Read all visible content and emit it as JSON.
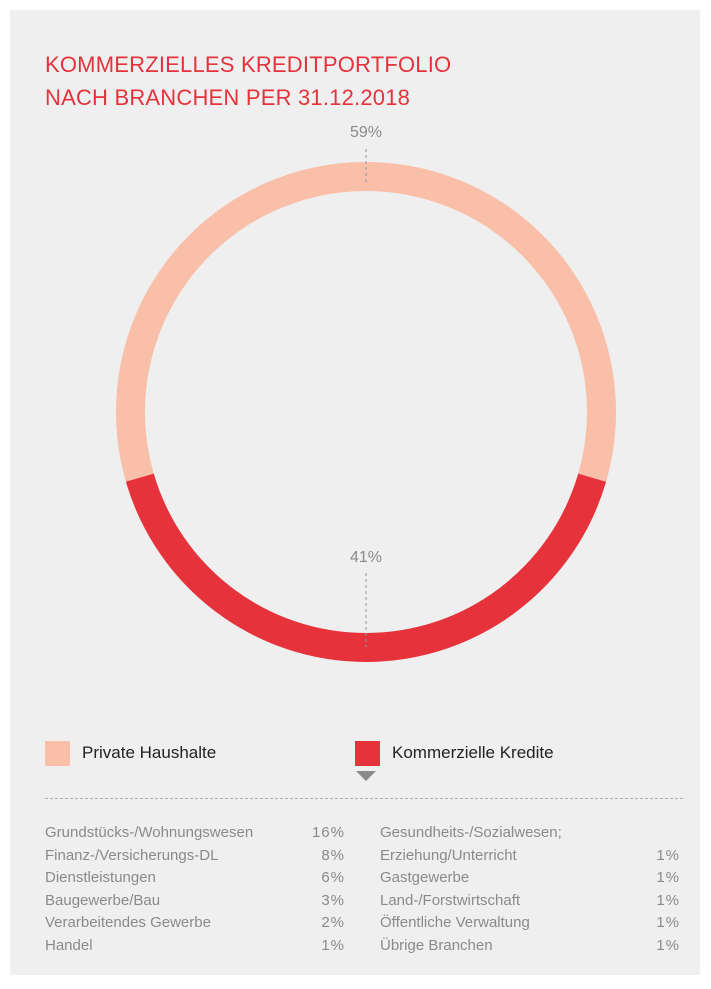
{
  "chart_data": [
    {
      "type": "pie",
      "title": "KOMMERZIELLES KREDITPORTFOLIO NACH BRANCHEN PER 31.12.2018",
      "categories": [
        "Private Haushalte",
        "Kommerzielle Kredite"
      ],
      "values": [
        59,
        41
      ],
      "value_labels": [
        "59%",
        "41%"
      ],
      "colors": [
        "#f9bfa9",
        "#e5323b"
      ]
    },
    {
      "type": "table",
      "categories": [
        "Grundstücks-/Wohnungswesen",
        "Finanz-/Versicherungs-DL",
        "Dienstleistungen",
        "Baugewerbe/Bau",
        "Verarbeitendes Gewerbe",
        "Handel",
        "Gesundheits-/Sozialwesen; Erziehung/Unterricht",
        "Gastgewerbe",
        "Land-/Forstwirtschaft",
        "Öffentliche Verwaltung",
        "Übrige Branchen"
      ],
      "values": [
        16,
        8,
        6,
        3,
        2,
        1,
        1,
        1,
        1,
        1,
        1
      ],
      "value_labels": [
        "16%",
        "8%",
        "6%",
        "3%",
        "2%",
        "1%",
        "1%",
        "1%",
        "1%",
        "1%",
        "1%"
      ]
    }
  ]
}
